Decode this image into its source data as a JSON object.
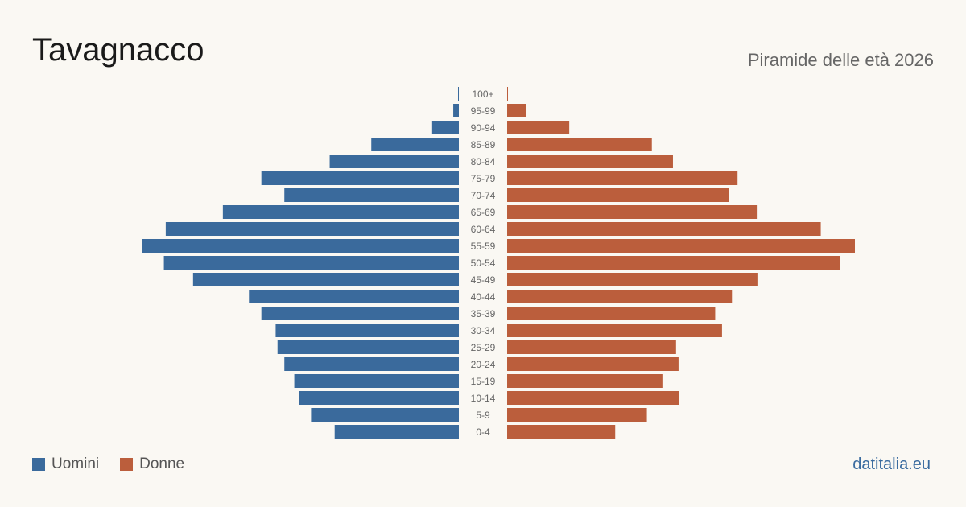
{
  "header": {
    "title": "Tavagnacco",
    "subtitle": "Piramide delle età 2026"
  },
  "legend": {
    "men_label": "Uomini",
    "women_label": "Donne",
    "men_color": "#3a6a9c",
    "women_color": "#bb5e3c"
  },
  "footer": {
    "site": "datitalia.eu"
  },
  "chart_data": {
    "type": "bar",
    "orientation": "horizontal-pyramid",
    "categories": [
      "100+",
      "95-99",
      "90-94",
      "85-89",
      "80-84",
      "75-79",
      "70-74",
      "65-69",
      "60-64",
      "55-59",
      "50-54",
      "45-49",
      "40-44",
      "35-39",
      "30-34",
      "25-29",
      "20-24",
      "15-19",
      "10-14",
      "5-9",
      "0-4"
    ],
    "series": [
      {
        "name": "Uomini",
        "values": [
          1,
          9,
          43,
          141,
          208,
          318,
          281,
          380,
          472,
          510,
          475,
          428,
          338,
          318,
          295,
          292,
          281,
          265,
          257,
          238,
          200
        ]
      },
      {
        "name": "Donne",
        "values": [
          1,
          31,
          100,
          233,
          267,
          371,
          357,
          402,
          505,
          560,
          536,
          403,
          362,
          335,
          346,
          272,
          276,
          250,
          277,
          225,
          174
        ]
      }
    ],
    "xlim": [
      0,
      560
    ]
  }
}
